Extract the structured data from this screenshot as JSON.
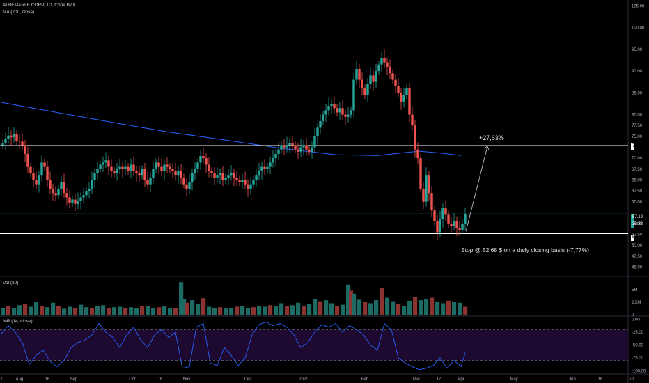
{
  "header": {
    "symbol": "ALBEMARLE CORP, 1D, Cboe BZX",
    "ma_label": "MA (200, close)",
    "vol_label": "Vol (20)",
    "wr_label": "%R (14, close)"
  },
  "colors": {
    "up": "#26a69a",
    "down": "#ef5350",
    "ma": "#2962ff",
    "wr": "#2962ff",
    "wr_band": "#1e0a30",
    "hline": "#ffffff",
    "support_line": "#1b5e4a",
    "bg": "#000000"
  },
  "annotations": {
    "target": "+27,63%",
    "stop": "Stop @ 52,68 $ on a daily closing basis (-7,77%)"
  },
  "price_tags": {
    "resistance": "72.90",
    "last": "57.19",
    "countdown": "30:32",
    "stop": "52.68"
  },
  "chart_data": {
    "type": "candlestick",
    "title": "ALBEMARLE CORP, 1D, Cboe BZX",
    "price_axis": {
      "ylim": [
        43,
        106
      ],
      "ticks": [
        "105.00",
        "100.00",
        "95.00",
        "90.00",
        "85.00",
        "80.00",
        "77.50",
        "75.00",
        "70.00",
        "67.50",
        "65.00",
        "62.50",
        "60.00",
        "55.00",
        "52.50",
        "50.00",
        "47.50",
        "45.00"
      ],
      "tick_values": [
        105,
        100,
        95,
        90,
        85,
        80,
        77.5,
        75,
        70,
        67.5,
        65,
        62.5,
        60,
        55,
        52.5,
        50,
        47.5,
        45
      ]
    },
    "volume_axis": {
      "ticks": [
        "5M",
        "2.5M",
        "0"
      ],
      "tick_values": [
        5,
        2.5,
        0
      ],
      "ylim": [
        0,
        7.5
      ]
    },
    "wr_axis": {
      "ticks": [
        "0.00",
        "-25.00",
        "-50.00",
        "-75.00",
        "-100.00"
      ],
      "tick_values": [
        0,
        -25,
        -50,
        -75,
        -100
      ],
      "ylim": [
        -105,
        5
      ]
    },
    "time_axis": {
      "ticks": [
        "7",
        "Aug",
        "16",
        "Sep",
        "Oct",
        "16",
        "Nov",
        "Dec",
        "2020",
        "Feb",
        "Mar",
        "17",
        "Apr",
        "May",
        "Jun",
        "16",
        "Jul"
      ],
      "positions": [
        0,
        13,
        33,
        52,
        94,
        114,
        133,
        177,
        217,
        261,
        298,
        314,
        330,
        368,
        410,
        430,
        452
      ]
    },
    "horizontal_levels": {
      "resistance": 72.9,
      "stop": 52.68,
      "last_close": 57.19
    },
    "ma200": [
      [
        0,
        82.8
      ],
      [
        40,
        80.5
      ],
      [
        80,
        78.2
      ],
      [
        120,
        76.0
      ],
      [
        160,
        74.2
      ],
      [
        200,
        72.3
      ],
      [
        240,
        70.8
      ],
      [
        270,
        70.6
      ],
      [
        290,
        71.3
      ],
      [
        300,
        71.6
      ],
      [
        315,
        71.2
      ],
      [
        330,
        70.6
      ]
    ],
    "closes": [
      [
        1,
        73.5
      ],
      [
        3,
        74.5
      ],
      [
        5,
        75.2
      ],
      [
        7,
        74.8
      ],
      [
        9,
        75.5
      ],
      [
        11,
        74.0
      ],
      [
        13,
        73.8
      ],
      [
        15,
        73.0
      ],
      [
        17,
        71.0
      ],
      [
        19,
        68.0
      ],
      [
        21,
        66.5
      ],
      [
        23,
        65.0
      ],
      [
        25,
        64.0
      ],
      [
        27,
        66.0
      ],
      [
        29,
        69.0
      ],
      [
        31,
        68.0
      ],
      [
        33,
        65.0
      ],
      [
        35,
        63.0
      ],
      [
        37,
        62.0
      ],
      [
        39,
        61.5
      ],
      [
        41,
        63.0
      ],
      [
        43,
        64.5
      ],
      [
        45,
        62.0
      ],
      [
        47,
        61.0
      ],
      [
        49,
        59.8
      ],
      [
        51,
        60.5
      ],
      [
        53,
        59.5
      ],
      [
        55,
        60.2
      ],
      [
        57,
        61.0
      ],
      [
        59,
        61.5
      ],
      [
        61,
        62.5
      ],
      [
        63,
        63.0
      ],
      [
        65,
        65.0
      ],
      [
        67,
        66.5
      ],
      [
        69,
        67.5
      ],
      [
        71,
        68.5
      ],
      [
        73,
        69.0
      ],
      [
        75,
        69.5
      ],
      [
        77,
        68.0
      ],
      [
        79,
        67.0
      ],
      [
        81,
        66.5
      ],
      [
        83,
        67.5
      ],
      [
        85,
        68.0
      ],
      [
        87,
        67.5
      ],
      [
        89,
        68.0
      ],
      [
        91,
        67.0
      ],
      [
        93,
        68.5
      ],
      [
        95,
        67.0
      ],
      [
        97,
        66.5
      ],
      [
        99,
        66.0
      ],
      [
        101,
        67.5
      ],
      [
        103,
        65.0
      ],
      [
        105,
        64.0
      ],
      [
        107,
        65.5
      ],
      [
        109,
        67.5
      ],
      [
        111,
        69.0
      ],
      [
        113,
        68.0
      ],
      [
        115,
        67.0
      ],
      [
        117,
        68.5
      ],
      [
        119,
        68.0
      ],
      [
        121,
        67.5
      ],
      [
        123,
        67.0
      ],
      [
        125,
        66.0
      ],
      [
        127,
        67.0
      ],
      [
        129,
        65.5
      ],
      [
        131,
        64.0
      ],
      [
        133,
        63.0
      ],
      [
        135,
        64.5
      ],
      [
        137,
        66.5
      ],
      [
        139,
        67.5
      ],
      [
        141,
        69.0
      ],
      [
        143,
        70.5
      ],
      [
        145,
        70.0
      ],
      [
        147,
        68.5
      ],
      [
        149,
        67.0
      ],
      [
        151,
        66.5
      ],
      [
        153,
        65.5
      ],
      [
        155,
        66.0
      ],
      [
        157,
        66.5
      ],
      [
        159,
        65.0
      ],
      [
        161,
        65.5
      ],
      [
        163,
        66.0
      ],
      [
        165,
        66.5
      ],
      [
        167,
        65.5
      ],
      [
        169,
        65.0
      ],
      [
        171,
        64.5
      ],
      [
        173,
        65.0
      ],
      [
        175,
        64.0
      ],
      [
        177,
        63.0
      ],
      [
        179,
        64.0
      ],
      [
        181,
        65.0
      ],
      [
        183,
        66.0
      ],
      [
        185,
        67.0
      ],
      [
        187,
        68.0
      ],
      [
        189,
        67.5
      ],
      [
        191,
        68.0
      ],
      [
        193,
        69.0
      ],
      [
        195,
        70.0
      ],
      [
        197,
        71.0
      ],
      [
        199,
        72.0
      ],
      [
        201,
        73.0
      ],
      [
        203,
        72.5
      ],
      [
        205,
        73.0
      ],
      [
        207,
        73.5
      ],
      [
        209,
        73.0
      ],
      [
        211,
        72.0
      ],
      [
        213,
        71.5
      ],
      [
        215,
        72.5
      ],
      [
        217,
        73.0
      ],
      [
        219,
        72.0
      ],
      [
        221,
        71.5
      ],
      [
        223,
        72.5
      ],
      [
        225,
        75.0
      ],
      [
        227,
        77.0
      ],
      [
        229,
        78.5
      ],
      [
        231,
        80.0
      ],
      [
        233,
        81.0
      ],
      [
        235,
        82.0
      ],
      [
        237,
        82.5
      ],
      [
        239,
        81.5
      ],
      [
        241,
        80.5
      ],
      [
        243,
        81.5
      ],
      [
        245,
        80.0
      ],
      [
        247,
        79.5
      ],
      [
        249,
        80.0
      ],
      [
        251,
        81.0
      ],
      [
        253,
        88.0
      ],
      [
        255,
        90.5
      ],
      [
        257,
        88.0
      ],
      [
        259,
        86.0
      ],
      [
        261,
        84.5
      ],
      [
        263,
        87.0
      ],
      [
        265,
        89.0
      ],
      [
        267,
        87.5
      ],
      [
        269,
        90.0
      ],
      [
        271,
        91.5
      ],
      [
        273,
        93.0
      ],
      [
        275,
        92.0
      ],
      [
        277,
        91.0
      ],
      [
        279,
        89.5
      ],
      [
        281,
        88.0
      ],
      [
        283,
        86.5
      ],
      [
        285,
        85.0
      ],
      [
        287,
        83.0
      ],
      [
        289,
        84.5
      ],
      [
        291,
        86.0
      ],
      [
        293,
        80.0
      ],
      [
        295,
        77.5
      ],
      [
        297,
        72.0
      ],
      [
        299,
        70.0
      ],
      [
        301,
        63.0
      ],
      [
        303,
        60.0
      ],
      [
        305,
        66.0
      ],
      [
        307,
        62.0
      ],
      [
        309,
        58.0
      ],
      [
        311,
        55.5
      ],
      [
        313,
        53.0
      ],
      [
        315,
        56.0
      ],
      [
        317,
        58.5
      ],
      [
        319,
        57.0
      ],
      [
        321,
        55.0
      ],
      [
        323,
        54.5
      ],
      [
        325,
        55.5
      ],
      [
        327,
        54.0
      ],
      [
        329,
        53.5
      ],
      [
        331,
        55.0
      ],
      [
        333,
        57.19
      ]
    ],
    "volume_millions": [
      [
        1,
        1.4
      ],
      [
        5,
        1.7
      ],
      [
        9,
        1.3
      ],
      [
        13,
        1.9
      ],
      [
        17,
        2.2
      ],
      [
        21,
        1.6
      ],
      [
        25,
        2.6
      ],
      [
        29,
        1.8
      ],
      [
        33,
        1.5
      ],
      [
        37,
        2.4
      ],
      [
        41,
        1.7
      ],
      [
        45,
        1.2
      ],
      [
        49,
        1.6
      ],
      [
        53,
        1.3
      ],
      [
        57,
        2.0
      ],
      [
        61,
        1.5
      ],
      [
        65,
        1.4
      ],
      [
        69,
        1.7
      ],
      [
        73,
        1.9
      ],
      [
        77,
        1.3
      ],
      [
        81,
        1.5
      ],
      [
        85,
        1.6
      ],
      [
        89,
        1.4
      ],
      [
        93,
        1.5
      ],
      [
        97,
        1.3
      ],
      [
        101,
        1.8
      ],
      [
        105,
        1.7
      ],
      [
        109,
        1.4
      ],
      [
        113,
        1.5
      ],
      [
        117,
        1.7
      ],
      [
        121,
        1.4
      ],
      [
        125,
        1.3
      ],
      [
        129,
        6.5
      ],
      [
        131,
        3.2
      ],
      [
        133,
        2.4
      ],
      [
        137,
        2.9
      ],
      [
        141,
        2.2
      ],
      [
        145,
        3.3
      ],
      [
        149,
        1.6
      ],
      [
        153,
        1.4
      ],
      [
        157,
        1.5
      ],
      [
        161,
        1.3
      ],
      [
        165,
        1.4
      ],
      [
        169,
        1.6
      ],
      [
        173,
        1.7
      ],
      [
        177,
        1.3
      ],
      [
        181,
        1.5
      ],
      [
        185,
        1.8
      ],
      [
        189,
        1.6
      ],
      [
        193,
        1.9
      ],
      [
        197,
        1.7
      ],
      [
        201,
        2.3
      ],
      [
        205,
        1.7
      ],
      [
        209,
        1.9
      ],
      [
        213,
        2.4
      ],
      [
        217,
        1.8
      ],
      [
        221,
        2.1
      ],
      [
        225,
        3.2
      ],
      [
        229,
        2.7
      ],
      [
        233,
        2.9
      ],
      [
        237,
        2.3
      ],
      [
        241,
        1.7
      ],
      [
        245,
        2.0
      ],
      [
        249,
        6.0
      ],
      [
        251,
        4.8
      ],
      [
        253,
        4.2
      ],
      [
        257,
        3.0
      ],
      [
        261,
        2.6
      ],
      [
        265,
        2.3
      ],
      [
        269,
        2.9
      ],
      [
        273,
        5.4
      ],
      [
        277,
        3.4
      ],
      [
        281,
        2.7
      ],
      [
        285,
        2.1
      ],
      [
        289,
        1.7
      ],
      [
        293,
        2.8
      ],
      [
        297,
        3.6
      ],
      [
        301,
        2.9
      ],
      [
        305,
        3.1
      ],
      [
        309,
        3.4
      ],
      [
        313,
        2.6
      ],
      [
        317,
        2.3
      ],
      [
        321,
        2.8
      ],
      [
        325,
        2.5
      ],
      [
        329,
        2.4
      ],
      [
        333,
        1.6
      ]
    ],
    "williams_r": [
      [
        0,
        -28
      ],
      [
        5,
        -12
      ],
      [
        10,
        -25
      ],
      [
        15,
        -45
      ],
      [
        20,
        -88
      ],
      [
        25,
        -70
      ],
      [
        30,
        -60
      ],
      [
        35,
        -82
      ],
      [
        40,
        -92
      ],
      [
        45,
        -80
      ],
      [
        50,
        -55
      ],
      [
        55,
        -45
      ],
      [
        60,
        -40
      ],
      [
        65,
        -30
      ],
      [
        70,
        -8
      ],
      [
        75,
        -25
      ],
      [
        80,
        -35
      ],
      [
        85,
        -55
      ],
      [
        90,
        -30
      ],
      [
        95,
        -15
      ],
      [
        100,
        -40
      ],
      [
        105,
        -55
      ],
      [
        110,
        -30
      ],
      [
        115,
        -20
      ],
      [
        120,
        -35
      ],
      [
        125,
        -25
      ],
      [
        130,
        -95
      ],
      [
        135,
        -92
      ],
      [
        140,
        -15
      ],
      [
        145,
        -8
      ],
      [
        150,
        -85
      ],
      [
        155,
        -90
      ],
      [
        160,
        -55
      ],
      [
        165,
        -70
      ],
      [
        170,
        -90
      ],
      [
        175,
        -75
      ],
      [
        180,
        -30
      ],
      [
        185,
        -10
      ],
      [
        190,
        -5
      ],
      [
        195,
        -12
      ],
      [
        200,
        -8
      ],
      [
        205,
        -15
      ],
      [
        210,
        -30
      ],
      [
        215,
        -55
      ],
      [
        220,
        -45
      ],
      [
        225,
        -25
      ],
      [
        230,
        -10
      ],
      [
        235,
        -15
      ],
      [
        240,
        -8
      ],
      [
        245,
        -25
      ],
      [
        250,
        -12
      ],
      [
        255,
        -20
      ],
      [
        260,
        -30
      ],
      [
        265,
        -50
      ],
      [
        270,
        -60
      ],
      [
        275,
        -8
      ],
      [
        280,
        -20
      ],
      [
        285,
        -75
      ],
      [
        290,
        -85
      ],
      [
        295,
        -92
      ],
      [
        300,
        -98
      ],
      [
        305,
        -95
      ],
      [
        310,
        -90
      ],
      [
        315,
        -75
      ],
      [
        320,
        -95
      ],
      [
        325,
        -80
      ],
      [
        330,
        -92
      ],
      [
        333,
        -65
      ]
    ]
  }
}
